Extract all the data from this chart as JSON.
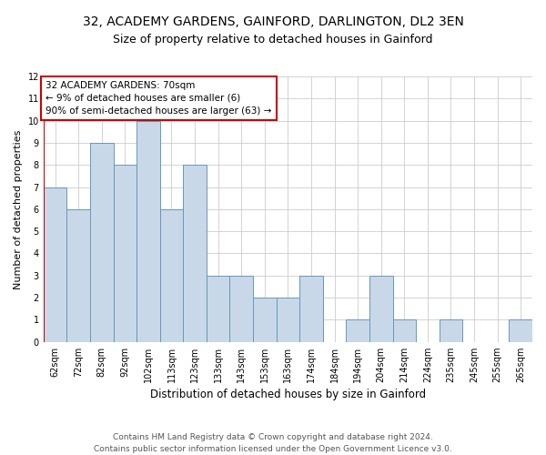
{
  "title1": "32, ACADEMY GARDENS, GAINFORD, DARLINGTON, DL2 3EN",
  "title2": "Size of property relative to detached houses in Gainford",
  "xlabel": "Distribution of detached houses by size in Gainford",
  "ylabel": "Number of detached properties",
  "categories": [
    "62sqm",
    "72sqm",
    "82sqm",
    "92sqm",
    "102sqm",
    "113sqm",
    "123sqm",
    "133sqm",
    "143sqm",
    "153sqm",
    "163sqm",
    "174sqm",
    "184sqm",
    "194sqm",
    "204sqm",
    "214sqm",
    "224sqm",
    "235sqm",
    "245sqm",
    "255sqm",
    "265sqm"
  ],
  "values": [
    7,
    6,
    9,
    8,
    10,
    6,
    8,
    3,
    3,
    2,
    2,
    3,
    0,
    1,
    3,
    1,
    0,
    1,
    0,
    0,
    1
  ],
  "bar_color": "#c8d8e8",
  "bar_edge_color": "#6699bb",
  "annotation_box_text": "32 ACADEMY GARDENS: 70sqm\n← 9% of detached houses are smaller (6)\n90% of semi-detached houses are larger (63) →",
  "annotation_box_color": "white",
  "annotation_box_edge_color": "#cc0000",
  "vertical_line_color": "#cc0000",
  "ylim": [
    0,
    12
  ],
  "yticks": [
    0,
    1,
    2,
    3,
    4,
    5,
    6,
    7,
    8,
    9,
    10,
    11,
    12
  ],
  "footnote": "Contains HM Land Registry data © Crown copyright and database right 2024.\nContains public sector information licensed under the Open Government Licence v3.0.",
  "title1_fontsize": 10,
  "title2_fontsize": 9,
  "xlabel_fontsize": 8.5,
  "ylabel_fontsize": 8,
  "tick_fontsize": 7,
  "annotation_fontsize": 7.5,
  "footnote_fontsize": 6.5
}
